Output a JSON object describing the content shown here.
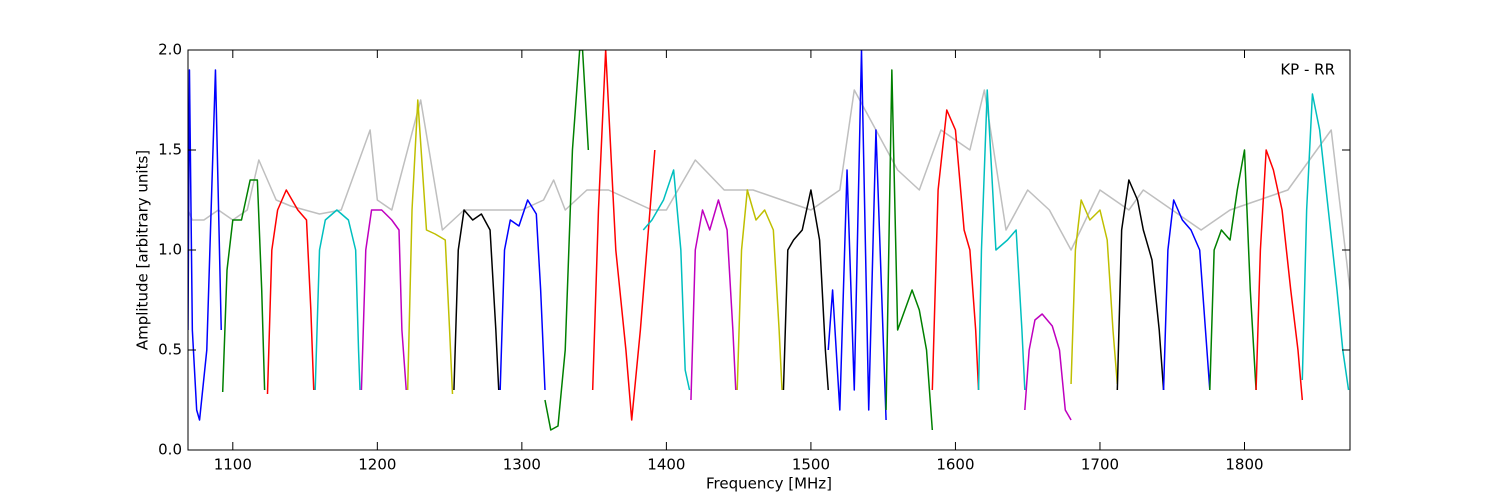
{
  "chart_data": {
    "type": "line",
    "xlabel": "Frequency [MHz]",
    "ylabel": "Amplitude [arbitrary units]",
    "annotation": "KP - RR",
    "xlim": [
      1069,
      1873
    ],
    "ylim": [
      0,
      2
    ],
    "xticks": [
      1100,
      1200,
      1300,
      1400,
      1500,
      1600,
      1700,
      1800
    ],
    "yticks": [
      {
        "value": 0,
        "label": "0.0"
      },
      {
        "value": 0.5,
        "label": "0.5"
      },
      {
        "value": 1,
        "label": "1.0"
      },
      {
        "value": 1.5,
        "label": "1.5"
      },
      {
        "value": 2,
        "label": "2.0"
      }
    ],
    "series": [
      {
        "color": "#bfbfbf",
        "x": [
          1069,
          1072,
          1080,
          1090,
          1100,
          1110,
          1118,
          1130,
          1140,
          1160,
          1175,
          1195,
          1200,
          1210,
          1230,
          1245,
          1260,
          1280,
          1300,
          1315,
          1322,
          1330,
          1345,
          1360,
          1375,
          1390,
          1400,
          1420,
          1440,
          1460,
          1480,
          1500,
          1520,
          1530,
          1545,
          1560,
          1575,
          1590,
          1610,
          1620,
          1635,
          1650,
          1665,
          1680,
          1700,
          1720,
          1730,
          1750,
          1770,
          1790,
          1810,
          1830,
          1845,
          1860,
          1873
        ],
        "values": [
          1.2,
          1.15,
          1.15,
          1.2,
          1.15,
          1.2,
          1.45,
          1.25,
          1.22,
          1.18,
          1.2,
          1.6,
          1.25,
          1.2,
          1.75,
          1.1,
          1.2,
          1.2,
          1.2,
          1.25,
          1.35,
          1.2,
          1.3,
          1.3,
          1.25,
          1.2,
          1.2,
          1.45,
          1.3,
          1.3,
          1.25,
          1.2,
          1.3,
          1.8,
          1.6,
          1.4,
          1.3,
          1.6,
          1.5,
          1.8,
          1.1,
          1.3,
          1.2,
          1.0,
          1.3,
          1.2,
          1.3,
          1.2,
          1.1,
          1.2,
          1.25,
          1.3,
          1.45,
          1.6,
          0.8
        ]
      },
      {
        "color": "#0000ff",
        "x": [
          1069,
          1070,
          1072,
          1075,
          1077,
          1082,
          1088,
          1092
        ],
        "values": [
          0.6,
          1.9,
          0.6,
          0.2,
          0.15,
          0.5,
          1.9,
          0.6
        ]
      },
      {
        "color": "#008000",
        "x": [
          1093,
          1096,
          1100,
          1106,
          1112,
          1117,
          1120,
          1122
        ],
        "values": [
          0.29,
          0.9,
          1.15,
          1.15,
          1.35,
          1.35,
          0.8,
          0.3
        ]
      },
      {
        "color": "#ff0000",
        "x": [
          1124,
          1127,
          1131,
          1137,
          1145,
          1151,
          1154,
          1156
        ],
        "values": [
          0.28,
          1.0,
          1.2,
          1.3,
          1.2,
          1.15,
          0.7,
          0.3
        ]
      },
      {
        "color": "#00bfbf",
        "x": [
          1157,
          1160,
          1164,
          1172,
          1180,
          1185,
          1187,
          1188
        ],
        "values": [
          0.3,
          1.0,
          1.15,
          1.2,
          1.15,
          1.0,
          0.5,
          0.3
        ]
      },
      {
        "color": "#bf00bf",
        "x": [
          1189,
          1192,
          1196,
          1203,
          1210,
          1215,
          1217,
          1220
        ],
        "values": [
          0.3,
          1.0,
          1.2,
          1.2,
          1.15,
          1.1,
          0.6,
          0.3
        ]
      },
      {
        "color": "#bfbf00",
        "x": [
          1221,
          1224,
          1228,
          1234,
          1240,
          1247,
          1250,
          1252
        ],
        "values": [
          0.3,
          1.2,
          1.75,
          1.1,
          1.08,
          1.05,
          0.6,
          0.28
        ]
      },
      {
        "color": "#000000",
        "x": [
          1253,
          1256,
          1260,
          1266,
          1272,
          1278,
          1282,
          1284
        ],
        "values": [
          0.3,
          1.0,
          1.2,
          1.15,
          1.18,
          1.1,
          0.6,
          0.3
        ]
      },
      {
        "color": "#0000ff",
        "x": [
          1285,
          1288,
          1292,
          1298,
          1304,
          1310,
          1313,
          1316
        ],
        "values": [
          0.3,
          1.0,
          1.15,
          1.12,
          1.25,
          1.18,
          0.8,
          0.3
        ]
      },
      {
        "color": "#008000",
        "x": [
          1316,
          1320,
          1325,
          1330,
          1335,
          1340,
          1342,
          1346
        ],
        "values": [
          0.25,
          0.1,
          0.12,
          0.5,
          1.5,
          2.0,
          2.0,
          1.5
        ]
      },
      {
        "color": "#ff0000",
        "x": [
          1349,
          1353,
          1358,
          1365,
          1372,
          1376,
          1382,
          1392
        ],
        "values": [
          0.3,
          1.2,
          2.0,
          1.0,
          0.5,
          0.15,
          0.6,
          1.5
        ]
      },
      {
        "color": "#00bfbf",
        "x": [
          1384,
          1390,
          1398,
          1405,
          1410,
          1413,
          1416
        ],
        "values": [
          1.1,
          1.15,
          1.25,
          1.4,
          1.0,
          0.4,
          0.3
        ]
      },
      {
        "color": "#bf00bf",
        "x": [
          1417,
          1420,
          1425,
          1430,
          1436,
          1442,
          1446,
          1448
        ],
        "values": [
          0.25,
          1.0,
          1.2,
          1.1,
          1.25,
          1.1,
          0.6,
          0.3
        ]
      },
      {
        "color": "#bfbf00",
        "x": [
          1449,
          1452,
          1456,
          1462,
          1468,
          1474,
          1478,
          1480
        ],
        "values": [
          0.3,
          1.0,
          1.3,
          1.15,
          1.2,
          1.1,
          0.6,
          0.3
        ]
      },
      {
        "color": "#000000",
        "x": [
          1481,
          1484,
          1488,
          1494,
          1500,
          1506,
          1510,
          1512
        ],
        "values": [
          0.3,
          1.0,
          1.05,
          1.1,
          1.3,
          1.05,
          0.5,
          0.3
        ]
      },
      {
        "color": "#0000ff",
        "x": [
          1512,
          1515,
          1520,
          1525,
          1530,
          1535,
          1540,
          1545,
          1552
        ],
        "values": [
          0.5,
          0.8,
          0.2,
          1.4,
          0.3,
          2.0,
          0.2,
          1.6,
          0.15
        ]
      },
      {
        "color": "#008000",
        "x": [
          1552,
          1556,
          1560,
          1565,
          1570,
          1575,
          1580,
          1584
        ],
        "values": [
          0.2,
          1.9,
          0.6,
          0.7,
          0.8,
          0.7,
          0.5,
          0.1
        ]
      },
      {
        "color": "#ff0000",
        "x": [
          1584,
          1588,
          1594,
          1600,
          1606,
          1610,
          1614,
          1616
        ],
        "values": [
          0.3,
          1.3,
          1.7,
          1.6,
          1.1,
          1.0,
          0.6,
          0.3
        ]
      },
      {
        "color": "#00bfbf",
        "x": [
          1616,
          1618,
          1622,
          1628,
          1636,
          1642,
          1646,
          1648
        ],
        "values": [
          0.3,
          1.0,
          1.8,
          1.0,
          1.05,
          1.1,
          0.6,
          0.3
        ]
      },
      {
        "color": "#bf00bf",
        "x": [
          1648,
          1651,
          1655,
          1660,
          1667,
          1672,
          1676,
          1680
        ],
        "values": [
          0.2,
          0.5,
          0.65,
          0.68,
          0.62,
          0.5,
          0.2,
          0.15
        ]
      },
      {
        "color": "#bfbf00",
        "x": [
          1680,
          1683,
          1687,
          1693,
          1700,
          1705,
          1709,
          1712
        ],
        "values": [
          0.33,
          1.0,
          1.25,
          1.15,
          1.2,
          1.05,
          0.6,
          0.33
        ]
      },
      {
        "color": "#000000",
        "x": [
          1712,
          1715,
          1720,
          1726,
          1730,
          1736,
          1741,
          1744
        ],
        "values": [
          0.3,
          1.1,
          1.35,
          1.25,
          1.1,
          0.95,
          0.6,
          0.3
        ]
      },
      {
        "color": "#0000ff",
        "x": [
          1744,
          1747,
          1751,
          1757,
          1763,
          1769,
          1773,
          1776
        ],
        "values": [
          0.3,
          1.0,
          1.25,
          1.15,
          1.1,
          1.0,
          0.6,
          0.3
        ]
      },
      {
        "color": "#008000",
        "x": [
          1776,
          1779,
          1784,
          1790,
          1795,
          1800,
          1804,
          1808
        ],
        "values": [
          0.3,
          1.0,
          1.1,
          1.05,
          1.3,
          1.5,
          0.8,
          0.3
        ]
      },
      {
        "color": "#ff0000",
        "x": [
          1808,
          1811,
          1815,
          1820,
          1826,
          1832,
          1837,
          1840
        ],
        "values": [
          0.3,
          1.0,
          1.5,
          1.4,
          1.2,
          0.8,
          0.5,
          0.25
        ]
      },
      {
        "color": "#00bfbf",
        "x": [
          1840,
          1843,
          1847,
          1852,
          1858,
          1864,
          1868,
          1872
        ],
        "values": [
          0.35,
          1.2,
          1.78,
          1.6,
          1.2,
          0.8,
          0.5,
          0.3
        ]
      }
    ]
  }
}
